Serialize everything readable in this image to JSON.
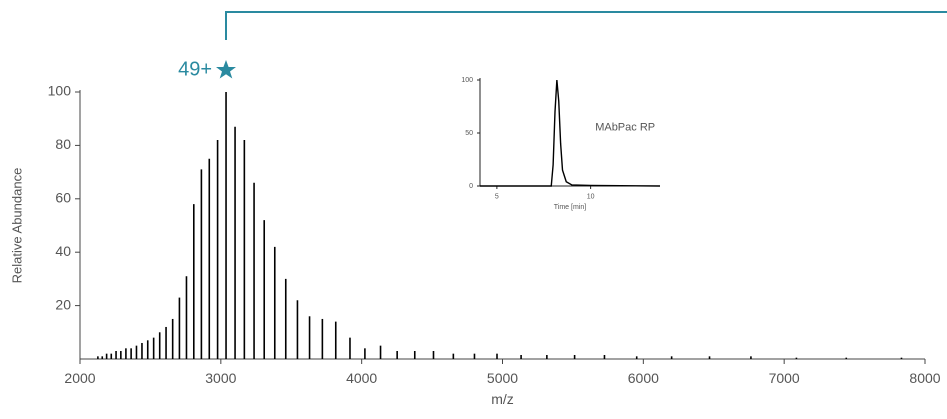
{
  "chart_data": [
    {
      "type": "spectrum",
      "xlabel": "m/z",
      "ylabel": "Relative Abundance",
      "annotation": "49+",
      "color": "#000000",
      "annotation_color": "#2a8aa0",
      "xlim": [
        2000,
        8000
      ],
      "xticks": [
        2000,
        3000,
        4000,
        5000,
        6000,
        7000,
        8000
      ],
      "ylim": [
        0,
        100
      ],
      "yticks": [
        20,
        40,
        60,
        80,
        100
      ],
      "x": [
        2127,
        2158,
        2189,
        2222,
        2256,
        2290,
        2326,
        2363,
        2401,
        2440,
        2481,
        2523,
        2566,
        2611,
        2658,
        2706,
        2756,
        2808,
        2862,
        2918,
        2977,
        3037,
        3101,
        3167,
        3236,
        3308,
        3383,
        3461,
        3544,
        3630,
        3721,
        3816,
        3917,
        4023,
        4134,
        4252,
        4377,
        4510,
        4651,
        4801,
        4961,
        5132,
        5315,
        5512,
        5724,
        5953,
        6201,
        6470,
        6764,
        7087,
        7441,
        7833
      ],
      "values": [
        1,
        1,
        2,
        2,
        3,
        3,
        4,
        4,
        5,
        6,
        7,
        8,
        10,
        12,
        15,
        23,
        31,
        58,
        71,
        75,
        82,
        100,
        87,
        82,
        66,
        52,
        42,
        30,
        22,
        16,
        15,
        14,
        8,
        4,
        5,
        3,
        3,
        3,
        2,
        2,
        2,
        1.5,
        1.5,
        1.5,
        1.5,
        1,
        1,
        1,
        1,
        0.5,
        0.5,
        0.5
      ]
    },
    {
      "type": "line",
      "xlabel": "Time [min]",
      "label": "MAbPac RP",
      "color": "#000000",
      "xlim": [
        4.1,
        13.7
      ],
      "xticks": [
        5,
        10
      ],
      "ylim": [
        0,
        100
      ],
      "yticks": [
        0,
        50,
        100
      ],
      "x": [
        4.1,
        7.9,
        8.0,
        8.1,
        8.2,
        8.3,
        8.4,
        8.5,
        8.7,
        9.0,
        10.0,
        13.7
      ],
      "values": [
        0,
        0,
        20,
        70,
        100,
        80,
        40,
        15,
        4,
        1,
        0.5,
        0
      ]
    }
  ]
}
